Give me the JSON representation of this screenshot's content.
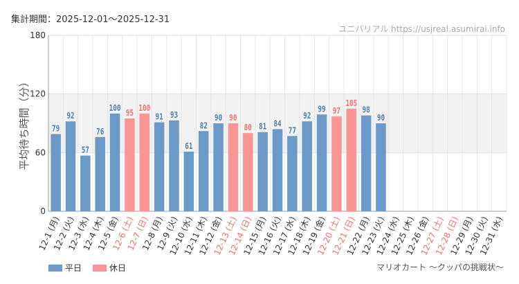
{
  "header": {
    "period": "集計期間：2025-12-01～2025-12-31",
    "source": "ユニバリアル  https://usjreal.asumirai.info"
  },
  "footer": {
    "caption": "マリオカート ～クッパの挑戦状～"
  },
  "colors": {
    "weekday": "#6b9ac9",
    "holiday": "#f99595",
    "holiday_label": "#f07070",
    "band": "#f2f2f2"
  },
  "chart_data": {
    "type": "bar",
    "ylabel": "平均待ち時間（分）",
    "ylim": [
      0,
      180
    ],
    "yticks": [
      0,
      60,
      120,
      180
    ],
    "shaded_band": [
      60,
      120
    ],
    "legend": [
      {
        "name": "平日",
        "key": "weekday"
      },
      {
        "name": "休日",
        "key": "holiday"
      }
    ],
    "categories": [
      "12-1 (月)",
      "12-2 (火)",
      "12-3 (水)",
      "12-4 (木)",
      "12-5 (金)",
      "12-6 (土)",
      "12-7 (日)",
      "12-8 (月)",
      "12-9 (火)",
      "12-10 (水)",
      "12-11 (木)",
      "12-12 (金)",
      "12-13 (土)",
      "12-14 (日)",
      "12-15 (月)",
      "12-16 (火)",
      "12-17 (水)",
      "12-18 (木)",
      "12-19 (金)",
      "12-20 (土)",
      "12-21 (日)",
      "12-22 (月)",
      "12-23 (火)",
      "12-24 (水)",
      "12-25 (木)",
      "12-26 (金)",
      "12-27 (土)",
      "12-28 (日)",
      "12-29 (月)",
      "12-30 (火)",
      "12-31 (水)"
    ],
    "values": [
      79,
      92,
      57,
      76,
      100,
      95,
      100,
      91,
      93,
      61,
      82,
      90,
      90,
      80,
      81,
      84,
      77,
      92,
      99,
      97,
      105,
      98,
      90,
      null,
      null,
      null,
      null,
      null,
      null,
      null,
      null
    ],
    "day_type": [
      "weekday",
      "weekday",
      "weekday",
      "weekday",
      "weekday",
      "holiday",
      "holiday",
      "weekday",
      "weekday",
      "weekday",
      "weekday",
      "weekday",
      "holiday",
      "holiday",
      "weekday",
      "weekday",
      "weekday",
      "weekday",
      "weekday",
      "holiday",
      "holiday",
      "weekday",
      "weekday",
      "weekday",
      "weekday",
      "weekday",
      "holiday",
      "holiday",
      "weekday",
      "weekday",
      "weekday"
    ]
  }
}
